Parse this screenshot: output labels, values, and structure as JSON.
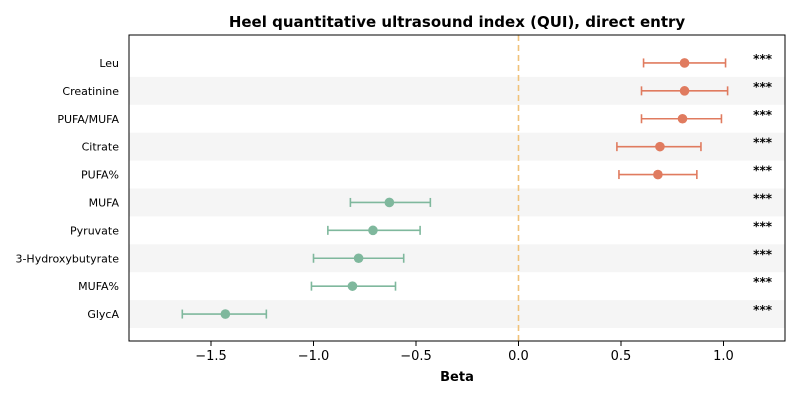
{
  "chart_data": {
    "type": "forest",
    "title": "Heel quantitative ultrasound index (QUI), direct entry",
    "xlabel": "Beta",
    "xlim": [
      -1.9,
      1.3
    ],
    "xticks": [
      -1.5,
      -1.0,
      -0.5,
      0.0,
      0.5,
      1.0
    ],
    "xtick_labels": [
      "−1.5",
      "−1.0",
      "−0.5",
      "0.0",
      "0.5",
      "1.0"
    ],
    "reference_line": 0,
    "colors": {
      "positive": "#e07b5f",
      "negative": "#7fb89d",
      "reference": "#f0c27a",
      "band": "#f5f5f5"
    },
    "rows": [
      {
        "label": "Leu",
        "beta": 0.81,
        "ci": [
          0.61,
          1.01
        ],
        "significance": "***"
      },
      {
        "label": "Creatinine",
        "beta": 0.81,
        "ci": [
          0.6,
          1.02
        ],
        "significance": "***"
      },
      {
        "label": "PUFA/MUFA",
        "beta": 0.8,
        "ci": [
          0.6,
          0.99
        ],
        "significance": "***"
      },
      {
        "label": "Citrate",
        "beta": 0.69,
        "ci": [
          0.48,
          0.89
        ],
        "significance": "***"
      },
      {
        "label": "PUFA%",
        "beta": 0.68,
        "ci": [
          0.49,
          0.87
        ],
        "significance": "***"
      },
      {
        "label": "MUFA",
        "beta": -0.63,
        "ci": [
          -0.82,
          -0.43
        ],
        "significance": "***"
      },
      {
        "label": "Pyruvate",
        "beta": -0.71,
        "ci": [
          -0.93,
          -0.48
        ],
        "significance": "***"
      },
      {
        "label": "3-Hydroxybutyrate",
        "beta": -0.78,
        "ci": [
          -1.0,
          -0.56
        ],
        "significance": "***"
      },
      {
        "label": "MUFA%",
        "beta": -0.81,
        "ci": [
          -1.01,
          -0.6
        ],
        "significance": "***"
      },
      {
        "label": "GlycA",
        "beta": -1.43,
        "ci": [
          -1.64,
          -1.23
        ],
        "significance": "***"
      }
    ]
  }
}
